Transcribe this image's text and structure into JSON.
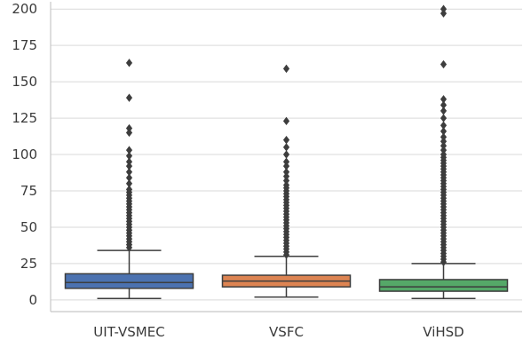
{
  "chart_data": {
    "type": "box",
    "title": "",
    "xlabel": "",
    "ylabel": "",
    "ylim": [
      -8,
      205
    ],
    "y_ticks": [
      0,
      25,
      50,
      75,
      100,
      125,
      150,
      175,
      200
    ],
    "grid": "horizontal",
    "categories": [
      "UIT-VSMEC",
      "VSFC",
      "ViHSD"
    ],
    "colors": [
      "#4c72b0",
      "#dd8452",
      "#55a868"
    ],
    "boxes": [
      {
        "q1": 8,
        "median": 12,
        "q3": 18,
        "whisker_low": 1,
        "whisker_high": 34,
        "outliers": [
          36,
          38,
          40,
          42,
          44,
          46,
          48,
          50,
          52,
          54,
          56,
          58,
          60,
          62,
          64,
          66,
          68,
          70,
          72,
          74,
          76,
          80,
          84,
          88,
          92,
          95,
          99,
          103,
          115,
          118,
          139,
          163
        ]
      },
      {
        "q1": 9,
        "median": 13,
        "q3": 17,
        "whisker_low": 2,
        "whisker_high": 30,
        "outliers": [
          31,
          33,
          35,
          37,
          39,
          41,
          43,
          45,
          47,
          49,
          51,
          53,
          55,
          57,
          59,
          61,
          63,
          65,
          67,
          69,
          71,
          73,
          75,
          77,
          79,
          82,
          85,
          88,
          92,
          95,
          100,
          105,
          110,
          123,
          159
        ]
      },
      {
        "q1": 6,
        "median": 9,
        "q3": 14,
        "whisker_low": 1,
        "whisker_high": 25,
        "outliers": [
          26,
          28,
          30,
          32,
          34,
          36,
          38,
          40,
          42,
          44,
          46,
          48,
          50,
          52,
          54,
          56,
          58,
          60,
          62,
          64,
          66,
          68,
          70,
          72,
          74,
          76,
          78,
          80,
          82,
          84,
          86,
          88,
          90,
          92,
          94,
          96,
          98,
          100,
          103,
          106,
          109,
          112,
          116,
          120,
          125,
          130,
          134,
          138,
          162,
          197,
          200
        ]
      }
    ]
  }
}
